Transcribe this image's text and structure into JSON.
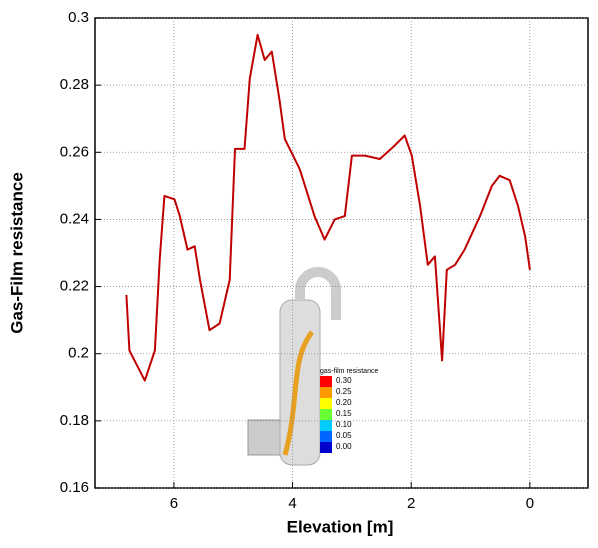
{
  "chart_data": {
    "type": "line",
    "x_label": "Elevation [m]",
    "y_label": "Gas-Film resistance",
    "x": [
      6.8,
      6.75,
      6.49,
      6.32,
      6.24,
      6.16,
      5.99,
      5.9,
      5.77,
      5.65,
      5.56,
      5.4,
      5.23,
      5.06,
      4.97,
      4.81,
      4.72,
      4.59,
      4.47,
      4.35,
      4.22,
      4.13,
      3.88,
      3.63,
      3.46,
      3.29,
      3.12,
      3.0,
      2.78,
      2.53,
      2.28,
      2.11,
      1.99,
      1.85,
      1.72,
      1.6,
      1.48,
      1.4,
      1.26,
      1.1,
      0.84,
      0.64,
      0.51,
      0.34,
      0.2,
      0.08,
      0.0
    ],
    "series": [
      {
        "name": "Gas-Film resistance",
        "color": "#c00000",
        "values": [
          0.2175,
          0.201,
          0.192,
          0.201,
          0.228,
          0.247,
          0.246,
          0.241,
          0.231,
          0.232,
          0.222,
          0.207,
          0.209,
          0.222,
          0.261,
          0.261,
          0.282,
          0.295,
          0.2875,
          0.29,
          0.2756,
          0.264,
          0.255,
          0.241,
          0.234,
          0.24,
          0.241,
          0.259,
          0.259,
          0.258,
          0.262,
          0.265,
          0.259,
          0.244,
          0.2265,
          0.229,
          0.198,
          0.225,
          0.2265,
          0.231,
          0.241,
          0.25,
          0.253,
          0.2517,
          0.244,
          0.235,
          0.225
        ]
      }
    ],
    "xlim": [
      7.33,
      -0.98
    ],
    "xticks": [
      6,
      4,
      2,
      0
    ],
    "ylim": [
      0.16,
      0.3
    ],
    "yticks": [
      0.16,
      0.18,
      0.2,
      0.22,
      0.24,
      0.26,
      0.28,
      0.3
    ],
    "grid": true
  },
  "inset": {
    "title": "gas-film resistance",
    "labels": [
      "0.30",
      "0.25",
      "0.20",
      "0.15",
      "0.10",
      "0.05",
      "0.00"
    ],
    "colors": [
      "#ff0000",
      "#ff9900",
      "#ffff00",
      "#66ff33",
      "#00ccff",
      "#0066ff",
      "#0000cc"
    ]
  }
}
